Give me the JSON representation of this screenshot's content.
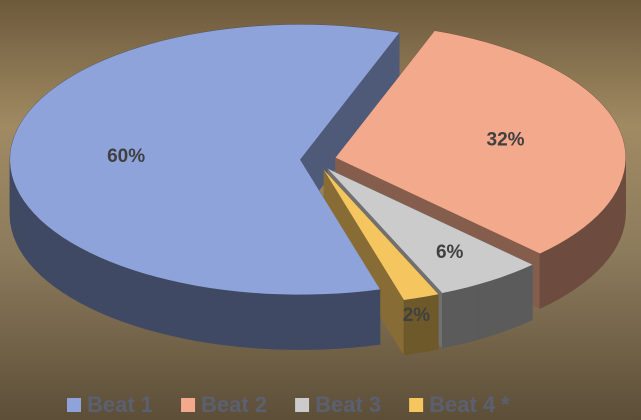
{
  "chart_data": {
    "type": "pie",
    "categories": [
      "Beat 1",
      "Beat 2",
      "Beat 3",
      "Beat 4 *"
    ],
    "values": [
      60,
      32,
      6,
      2
    ],
    "value_labels": [
      "60%",
      "32%",
      "6%",
      "2%"
    ],
    "colors": [
      "#8fa3db",
      "#f2a98c",
      "#cbcbcb",
      "#f5c660"
    ],
    "legend": "bottom"
  }
}
